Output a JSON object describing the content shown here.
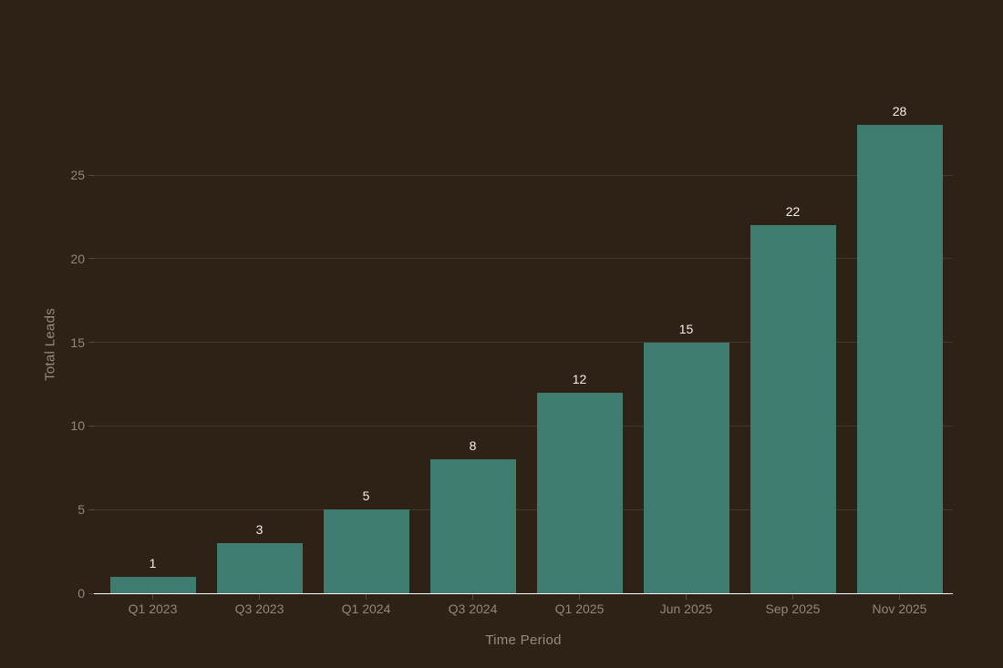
{
  "chart_data": {
    "type": "bar",
    "categories": [
      "Q1 2023",
      "Q3 2023",
      "Q1 2024",
      "Q3 2024",
      "Q1 2025",
      "Jun 2025",
      "Sep 2025",
      "Nov 2025"
    ],
    "values": [
      1,
      3,
      5,
      8,
      12,
      15,
      22,
      28
    ],
    "title": "",
    "xlabel": "Time Period",
    "ylabel": "Total Leads",
    "ylim": [
      0,
      28
    ],
    "yticks": [
      0,
      5,
      10,
      15,
      20,
      25
    ],
    "grid": "horizontal-only",
    "legend": "none",
    "value_labels": "above-bars",
    "colors": {
      "background": "#2e2115",
      "bar": "#3e7c70",
      "axis_line": "#ffffff",
      "gridline": "rgba(255,255,255,0.10)",
      "tick_mark": "rgba(255,255,255,0.18)",
      "tick_text": "#8f887b",
      "axis_label_text": "#948d7f",
      "value_label_text": "#f2efe9"
    }
  }
}
